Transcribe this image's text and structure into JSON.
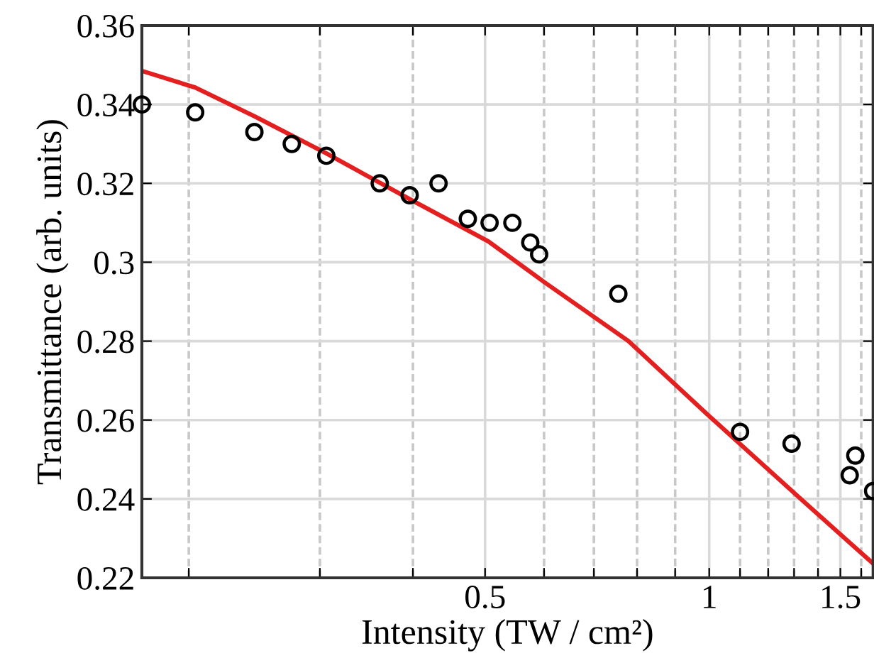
{
  "chart_data": {
    "type": "scatter",
    "xlabel": "Intensity (TW / cm²)",
    "ylabel": "Transmittance (arb. units)",
    "log": "x",
    "grid": true,
    "marker": "circle",
    "xlim": [
      0.173,
      1.66
    ],
    "ylim": [
      0.22,
      0.36
    ],
    "xticks": [
      {
        "value": 0.2,
        "label": null
      },
      {
        "value": 0.3,
        "label": null
      },
      {
        "value": 0.4,
        "label": null
      },
      0.5,
      {
        "value": 0.6,
        "label": null
      },
      {
        "value": 0.7,
        "label": null
      },
      {
        "value": 0.8,
        "label": null
      },
      {
        "value": 0.9,
        "label": null
      },
      1,
      {
        "value": 1.1,
        "label": null
      },
      {
        "value": 1.2,
        "label": null
      },
      {
        "value": 1.3,
        "label": null
      },
      {
        "value": 1.4,
        "label": null
      },
      1.5,
      {
        "value": 1.6,
        "label": null
      }
    ],
    "yticks": [
      0.22,
      0.24,
      0.26,
      0.28,
      {
        "value": 0.3,
        "label": "0.3"
      },
      0.32,
      0.34,
      0.36
    ],
    "series": [
      {
        "color": "#000000",
        "x": [
          0.173,
          0.204,
          0.245,
          0.275,
          0.306,
          0.361,
          0.396,
          0.433,
          0.474,
          0.507,
          0.544,
          0.575,
          0.591,
          0.755,
          1.1,
          1.29,
          1.544,
          1.571,
          1.66
        ],
        "values": [
          0.34,
          0.338,
          0.333,
          0.33,
          0.327,
          0.32,
          0.317,
          0.32,
          0.311,
          0.31,
          0.31,
          0.305,
          0.302,
          0.292,
          0.257,
          0.254,
          0.246,
          0.251,
          0.242
        ]
      },
      {
        "type": "line",
        "color": "#e41f1f",
        "line_style": "solid",
        "marker": "none",
        "x": [
          0.173,
          0.204,
          0.245,
          0.306,
          0.396,
          0.505,
          0.598,
          0.779,
          1.0,
          1.318,
          1.66
        ],
        "values": [
          0.3485,
          0.3443,
          0.337,
          0.3276,
          0.316,
          0.3053,
          0.2952,
          0.28,
          0.261,
          0.2405,
          0.2236
        ]
      }
    ]
  }
}
